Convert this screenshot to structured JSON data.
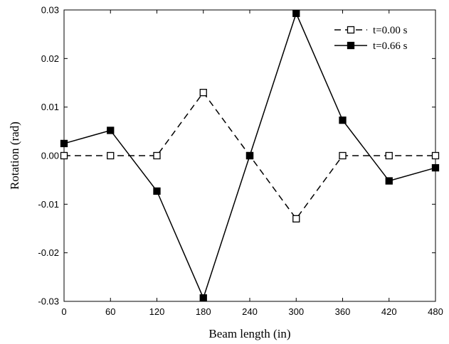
{
  "chart_data": {
    "type": "line",
    "xlabel": "Beam length (in)",
    "ylabel": "Rotation (rad)",
    "xlim": [
      0,
      480
    ],
    "ylim": [
      -0.03,
      0.03
    ],
    "x_ticks": [
      "0",
      "60",
      "120",
      "180",
      "240",
      "300",
      "360",
      "420",
      "480"
    ],
    "y_ticks": [
      "-0.03",
      "-0.02",
      "-0.01",
      "0.00",
      "0.01",
      "0.02",
      "0.03"
    ],
    "x_tick_values": [
      0,
      60,
      120,
      180,
      240,
      300,
      360,
      420,
      480
    ],
    "y_tick_values": [
      -0.03,
      -0.02,
      -0.01,
      0.0,
      0.01,
      0.02,
      0.03
    ],
    "grid": false,
    "legend_position": "top-right",
    "x": [
      0,
      60,
      120,
      180,
      240,
      300,
      360,
      420,
      480
    ],
    "series": [
      {
        "name": "t=0.00 s",
        "style": "dashed",
        "marker": "open-square",
        "color": "#000000",
        "values": [
          0.0,
          0.0,
          0.0,
          0.013,
          0.0,
          -0.013,
          0.0,
          0.0,
          0.0
        ]
      },
      {
        "name": "t=0.66 s",
        "style": "solid",
        "marker": "filled-square",
        "color": "#000000",
        "values": [
          0.0025,
          0.0052,
          -0.0073,
          -0.0293,
          0.0,
          0.0293,
          0.0073,
          -0.0052,
          -0.0025
        ]
      }
    ]
  }
}
